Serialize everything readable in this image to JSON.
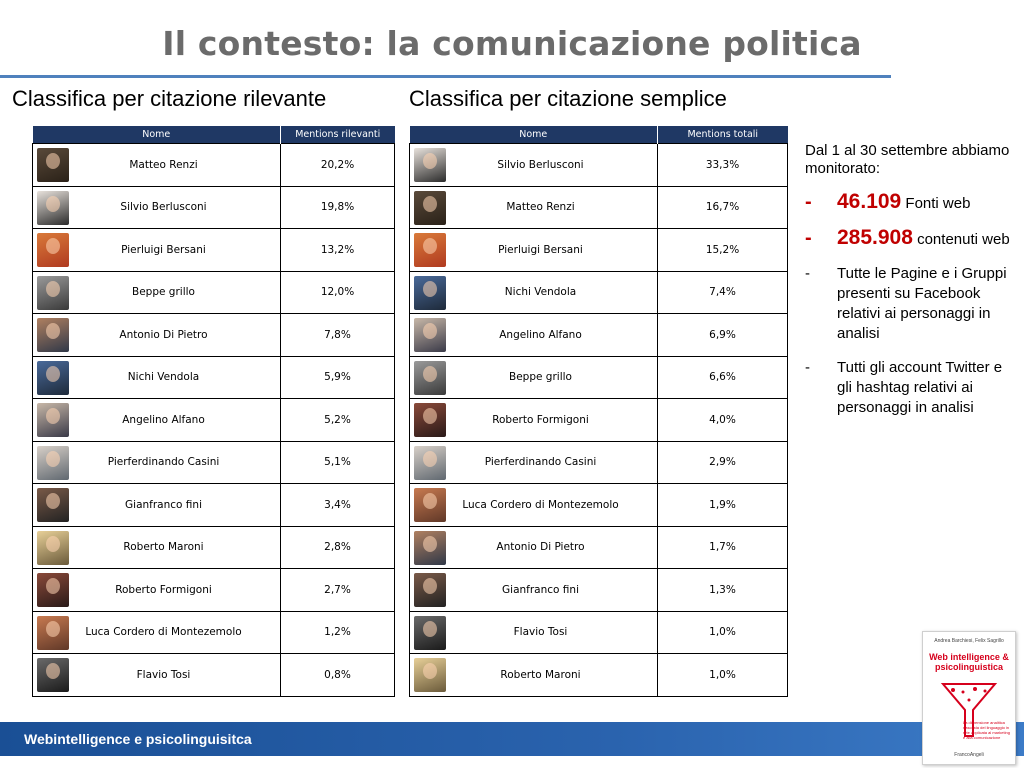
{
  "title": "Il contesto: la comunicazione politica",
  "left_table": {
    "heading": "Classifica per citazione rilevante",
    "col_name": "Nome",
    "col_value": "Mentions rilevanti",
    "rows": [
      {
        "name": "Matteo Renzi",
        "value": "20,2%"
      },
      {
        "name": "Silvio Berlusconi",
        "value": "19,8%"
      },
      {
        "name": "Pierluigi Bersani",
        "value": "13,2%"
      },
      {
        "name": "Beppe grillo",
        "value": "12,0%"
      },
      {
        "name": "Antonio Di Pietro",
        "value": "7,8%"
      },
      {
        "name": "Nichi Vendola",
        "value": "5,9%"
      },
      {
        "name": "Angelino Alfano",
        "value": "5,2%"
      },
      {
        "name": "Pierferdinando Casini",
        "value": "5,1%"
      },
      {
        "name": "Gianfranco fini",
        "value": "3,4%"
      },
      {
        "name": "Roberto Maroni",
        "value": "2,8%"
      },
      {
        "name": "Roberto Formigoni",
        "value": "2,7%"
      },
      {
        "name": "Luca Cordero di Montezemolo",
        "value": "1,2%"
      },
      {
        "name": "Flavio Tosi",
        "value": "0,8%"
      }
    ]
  },
  "right_table": {
    "heading": "Classifica per citazione semplice",
    "col_name": "Nome",
    "col_value": "Mentions totali",
    "rows": [
      {
        "name": "Silvio Berlusconi",
        "value": "33,3%"
      },
      {
        "name": "Matteo Renzi",
        "value": "16,7%"
      },
      {
        "name": "Pierluigi Bersani",
        "value": "15,2%"
      },
      {
        "name": "Nichi Vendola",
        "value": "7,4%"
      },
      {
        "name": "Angelino Alfano",
        "value": "6,9%"
      },
      {
        "name": "Beppe grillo",
        "value": "6,6%"
      },
      {
        "name": "Roberto Formigoni",
        "value": "4,0%"
      },
      {
        "name": "Pierferdinando Casini",
        "value": "2,9%"
      },
      {
        "name": "Luca Cordero di Montezemolo",
        "value": "1,9%"
      },
      {
        "name": "Antonio Di Pietro",
        "value": "1,7%"
      },
      {
        "name": "Gianfranco fini",
        "value": "1,3%"
      },
      {
        "name": "Flavio Tosi",
        "value": "1,0%"
      },
      {
        "name": "Roberto Maroni",
        "value": "1,0%"
      }
    ]
  },
  "notes": {
    "intro": "Dal 1 al 30 settembre abbiamo monitorato:",
    "items": [
      {
        "dash": "-",
        "number": "46.109",
        "text": "Fonti web"
      },
      {
        "dash": "-",
        "number": "285.908",
        "text": "contenuti web"
      },
      {
        "dash": "-",
        "text": "Tutte le Pagine e i Gruppi  presenti su Facebook relativi ai personaggi in analisi"
      },
      {
        "dash": "-",
        "text": "Tutti gli account Twitter e gli hashtag relativi ai personaggi in analisi"
      }
    ]
  },
  "footer": "Webintelligence e psicolinguisitca",
  "book": {
    "authors": "Andrea Barchiesi, Felix Sagrillo",
    "title": "Web intelligence & psicolinguistica",
    "subtitle": "La dimensione analitica nascosta del linguaggio in rete applicata al marketing e alla comunicazione",
    "publisher": "FrancoAngeli"
  },
  "colors": {
    "header_bg": "#1f3864",
    "accent_red": "#c00000",
    "footer_blue": "#2a63ae",
    "title_gray": "#6b6b6b"
  }
}
